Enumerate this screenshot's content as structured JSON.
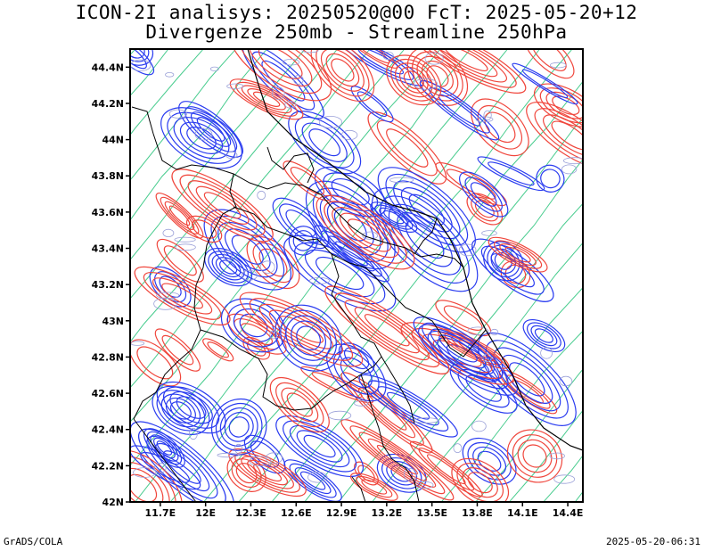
{
  "title_line1": "ICON-2I analisys: 20250520@00 FcT: 2025-05-20+12",
  "title_line2": "Divergenze 250mb - Streamline 250hPa",
  "footer_left": "GrADS/COLA",
  "footer_right": "2025-05-20-06:31",
  "y_axis_labels": [
    "44.4N",
    "44.2N",
    "44N",
    "43.8N",
    "43.6N",
    "43.4N",
    "43.2N",
    "43N",
    "42.8N",
    "42.6N",
    "42.4N",
    "42.2N",
    "42N"
  ],
  "x_axis_labels": [
    "11.7E",
    "12E",
    "12.3E",
    "12.6E",
    "12.9E",
    "13.2E",
    "13.5E",
    "13.8E",
    "14.1E",
    "14.4E"
  ],
  "lat_range": [
    42.0,
    44.5
  ],
  "lon_range": [
    11.5,
    14.5
  ],
  "colors": {
    "convergence": "#2a3cf0",
    "divergence": "#f0463c",
    "weak_contour": "#9aa0d8",
    "streamline": "#28c37a",
    "border": "#000000"
  }
}
